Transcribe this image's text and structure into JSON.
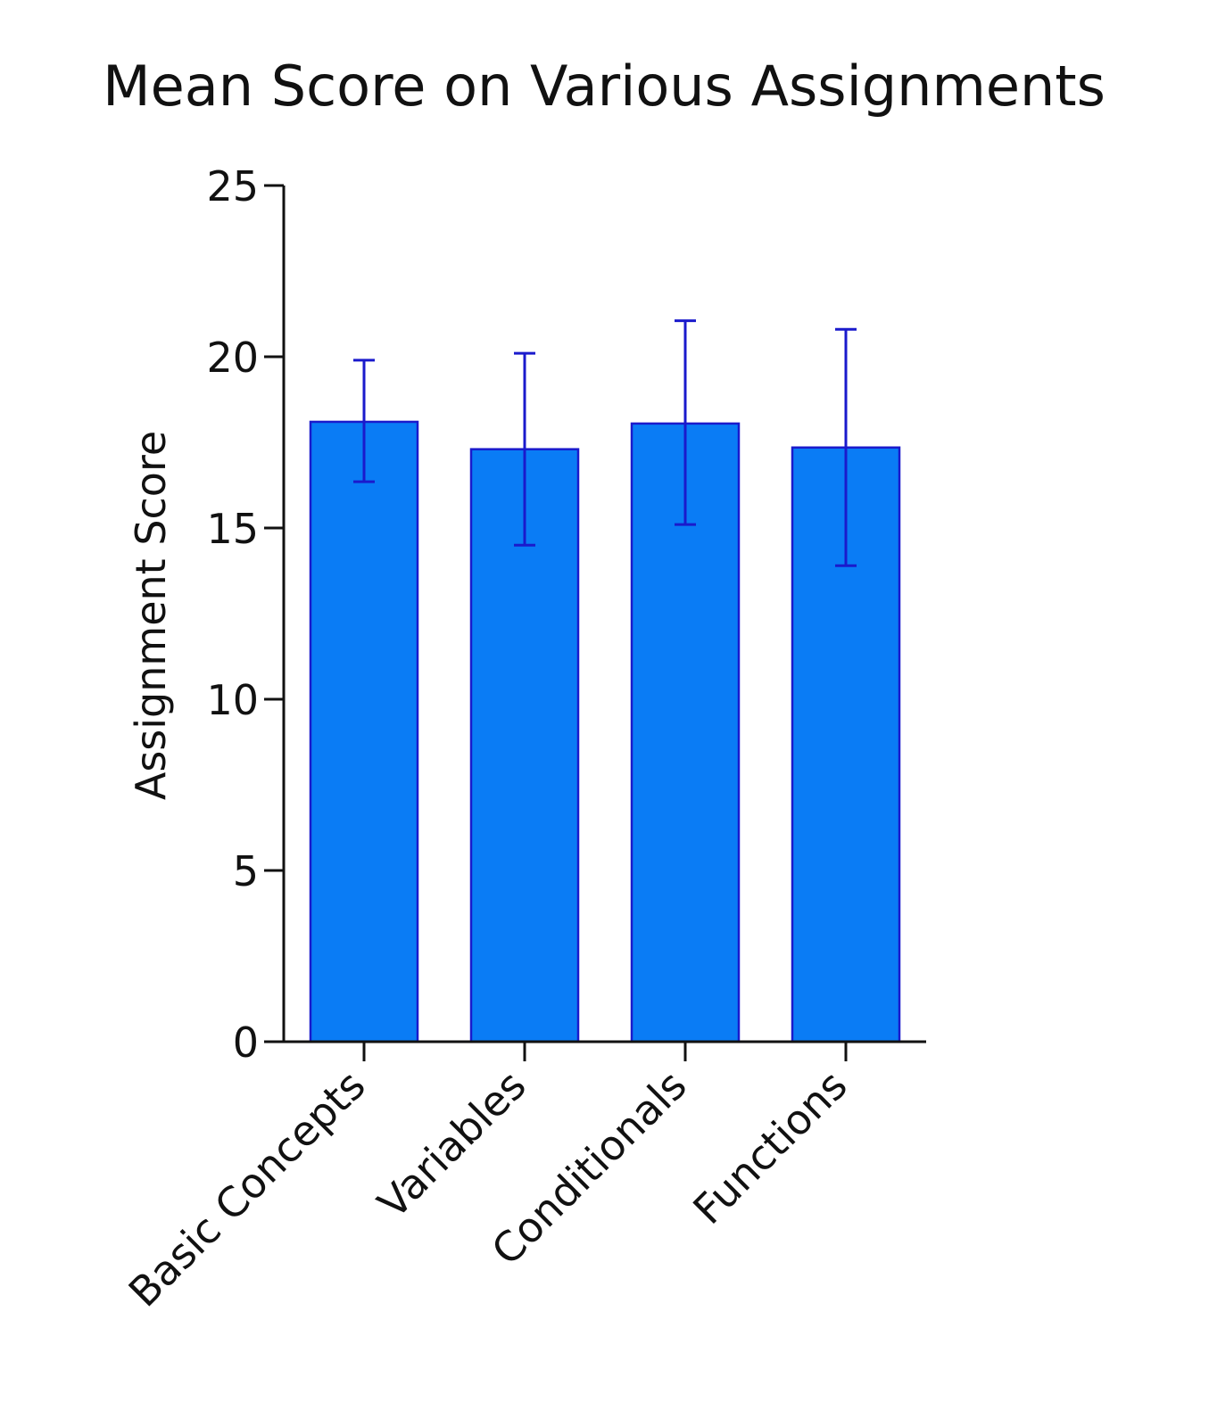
{
  "chart_data": {
    "type": "bar",
    "title": "Mean Score on Various Assignments",
    "xlabel": "",
    "ylabel": "Assignment Score",
    "categories": [
      "Basic Concepts",
      "Variables",
      "Conditionals",
      "Functions"
    ],
    "series": [
      {
        "values": [
          18.1,
          17.3,
          18.05,
          17.35
        ],
        "error_low": [
          16.35,
          14.5,
          15.1,
          13.9
        ],
        "error_high": [
          19.9,
          20.1,
          21.05,
          20.8
        ]
      }
    ],
    "ylim": [
      0,
      25
    ],
    "yticks": [
      "0",
      "5",
      "10",
      "15",
      "20",
      "25"
    ],
    "grid": false,
    "legend": "none",
    "colors": {
      "bar_fill": "#0a7cf5",
      "bar_edge": "#1a1acc",
      "error_bar": "#1a1acc",
      "axis": "#111111"
    }
  }
}
